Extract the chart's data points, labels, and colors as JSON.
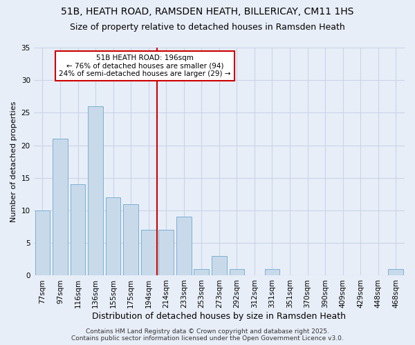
{
  "title1": "51B, HEATH ROAD, RAMSDEN HEATH, BILLERICAY, CM11 1HS",
  "title2": "Size of property relative to detached houses in Ramsden Heath",
  "xlabel": "Distribution of detached houses by size in Ramsden Heath",
  "ylabel": "Number of detached properties",
  "categories": [
    "77sqm",
    "97sqm",
    "116sqm",
    "136sqm",
    "155sqm",
    "175sqm",
    "194sqm",
    "214sqm",
    "233sqm",
    "253sqm",
    "273sqm",
    "292sqm",
    "312sqm",
    "331sqm",
    "351sqm",
    "370sqm",
    "390sqm",
    "409sqm",
    "429sqm",
    "448sqm",
    "468sqm"
  ],
  "values": [
    10,
    21,
    14,
    26,
    12,
    11,
    7,
    7,
    9,
    1,
    3,
    1,
    0,
    1,
    0,
    0,
    0,
    0,
    0,
    0,
    1
  ],
  "bar_color": "#c8daea",
  "bar_edge_color": "#7bafd4",
  "grid_color": "#c8d4e8",
  "background_color": "#e8eef8",
  "plot_bg_color": "#e8eef8",
  "vline_color": "#cc0000",
  "vline_x": 6.5,
  "annotation_text": "51B HEATH ROAD: 196sqm\n← 76% of detached houses are smaller (94)\n24% of semi-detached houses are larger (29) →",
  "annotation_box_facecolor": "#ffffff",
  "annotation_box_edgecolor": "#cc0000",
  "footer": "Contains HM Land Registry data © Crown copyright and database right 2025.\nContains public sector information licensed under the Open Government Licence v3.0.",
  "ylim": [
    0,
    35
  ],
  "yticks": [
    0,
    5,
    10,
    15,
    20,
    25,
    30,
    35
  ],
  "title1_fontsize": 10,
  "title2_fontsize": 9,
  "xlabel_fontsize": 9,
  "ylabel_fontsize": 8,
  "tick_fontsize": 7.5,
  "annot_fontsize": 7.5,
  "footer_fontsize": 6.5
}
